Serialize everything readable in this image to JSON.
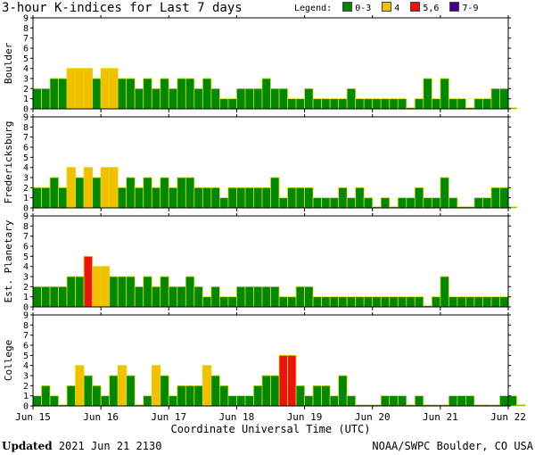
{
  "title": "3-hour K-indices for Last 7 days",
  "legend": {
    "label": "Legend:",
    "items": [
      {
        "label": "0-3",
        "color": "#008800"
      },
      {
        "label": "4",
        "color": "#f2c000"
      },
      {
        "label": "5,6",
        "color": "#ee1111"
      },
      {
        "label": "7-9",
        "color": "#440088"
      }
    ]
  },
  "footer": {
    "updated_label": "Updated",
    "updated_value": "2021 Jun 21 2130",
    "credit": "NOAA/SWPC Boulder, CO USA"
  },
  "chart_data": {
    "type": "bar",
    "xlabel": "Coordinate Universal Time (UTC)",
    "x_ticks": [
      "Jun 15",
      "Jun 16",
      "Jun 17",
      "Jun 18",
      "Jun 19",
      "Jun 20",
      "Jun 21",
      "Jun 22"
    ],
    "y_ticks": [
      0,
      1,
      2,
      3,
      4,
      5,
      6,
      7,
      8,
      9
    ],
    "ylim": [
      0,
      9
    ],
    "interval_hours": 3,
    "color_scale": {
      "0-3": "#008800",
      "4": "#f2c000",
      "5,6": "#ee1111",
      "7-9": "#440088"
    },
    "panels": [
      {
        "name": "Boulder",
        "values": [
          2,
          2,
          3,
          3,
          4,
          4,
          4,
          3,
          4,
          4,
          3,
          3,
          2,
          3,
          2,
          3,
          2,
          3,
          3,
          2,
          3,
          2,
          1,
          1,
          2,
          2,
          2,
          3,
          2,
          2,
          1,
          1,
          2,
          1,
          1,
          1,
          1,
          2,
          1,
          1,
          1,
          1,
          1,
          1,
          0,
          1,
          3,
          1,
          3,
          1,
          1,
          0,
          1,
          1,
          2,
          2,
          0
        ]
      },
      {
        "name": "Fredericksburg",
        "values": [
          2,
          2,
          3,
          2,
          4,
          3,
          4,
          3,
          4,
          4,
          2,
          3,
          2,
          3,
          2,
          3,
          2,
          3,
          3,
          2,
          2,
          2,
          1,
          2,
          2,
          2,
          2,
          2,
          3,
          1,
          2,
          2,
          2,
          1,
          1,
          1,
          2,
          1,
          2,
          1,
          0,
          1,
          0,
          1,
          1,
          2,
          1,
          1,
          3,
          1,
          0,
          0,
          1,
          1,
          2,
          2,
          0
        ]
      },
      {
        "name": "Est. Planetary",
        "values": [
          2,
          2,
          2,
          2,
          3,
          3,
          5,
          4,
          4,
          3,
          3,
          3,
          2,
          3,
          2,
          3,
          2,
          2,
          3,
          2,
          1,
          2,
          1,
          1,
          2,
          2,
          2,
          2,
          2,
          1,
          1,
          2,
          2,
          1,
          1,
          1,
          1,
          1,
          1,
          1,
          1,
          1,
          1,
          1,
          1,
          1,
          0,
          1,
          3,
          1,
          1,
          1,
          1,
          1,
          1,
          1
        ]
      },
      {
        "name": "College",
        "values": [
          1,
          2,
          1,
          0,
          2,
          4,
          3,
          2,
          1,
          3,
          4,
          3,
          0,
          1,
          4,
          3,
          1,
          2,
          2,
          2,
          4,
          3,
          2,
          1,
          1,
          1,
          2,
          3,
          3,
          5,
          5,
          2,
          1,
          2,
          2,
          1,
          3,
          1,
          0,
          0,
          0,
          1,
          1,
          1,
          0,
          1,
          0,
          0,
          0,
          1,
          1,
          1,
          0,
          0,
          0,
          1,
          1,
          0
        ]
      }
    ]
  }
}
